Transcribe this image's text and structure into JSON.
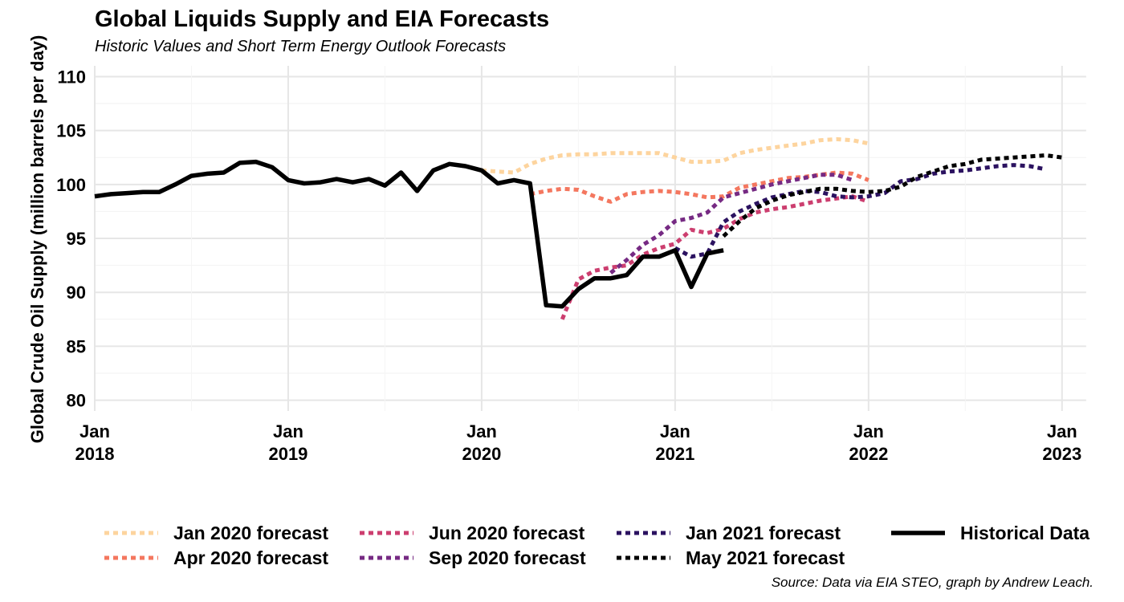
{
  "chart_data": {
    "type": "line",
    "title": "Global Liquids Supply and EIA Forecasts",
    "subtitle": "Historic Values and Short Term Energy Outlook Forecasts",
    "caption": "Source: Data via EIA STEO, graph by Andrew Leach.",
    "ylabel": "Global Crude Oil Supply (million barrels per day)",
    "xlabel": "",
    "ylim": [
      79,
      111
    ],
    "xlim": [
      "2018-01",
      "2023-02"
    ],
    "yticks": [
      80,
      85,
      90,
      95,
      100,
      105,
      110
    ],
    "xticks": [
      {
        "date": "2018-01",
        "label": [
          "Jan",
          "2018"
        ]
      },
      {
        "date": "2019-01",
        "label": [
          "Jan",
          "2019"
        ]
      },
      {
        "date": "2020-01",
        "label": [
          "Jan",
          "2020"
        ]
      },
      {
        "date": "2021-01",
        "label": [
          "Jan",
          "2021"
        ]
      },
      {
        "date": "2022-01",
        "label": [
          "Jan",
          "2022"
        ]
      },
      {
        "date": "2023-01",
        "label": [
          "Jan",
          "2023"
        ]
      }
    ],
    "grid": true,
    "legend_position": "bottom",
    "series": [
      {
        "name": "Jan 2020 forecast",
        "color": "#fdd49e",
        "dashed": true,
        "start": "2020-01",
        "values": [
          101.3,
          101.2,
          101.1,
          101.9,
          102.4,
          102.7,
          102.8,
          102.8,
          102.9,
          102.9,
          102.9,
          102.9,
          102.5,
          102.1,
          102.1,
          102.2,
          102.9,
          103.2,
          103.4,
          103.6,
          103.8,
          104.1,
          104.2,
          104.1,
          103.8
        ]
      },
      {
        "name": "Apr 2020 forecast",
        "color": "#f4775f",
        "dashed": true,
        "start": "2020-04",
        "values": [
          99.1,
          99.4,
          99.6,
          99.5,
          98.9,
          98.4,
          99.1,
          99.3,
          99.4,
          99.3,
          99.1,
          98.8,
          98.9,
          99.7,
          100.0,
          100.3,
          100.6,
          100.7,
          100.9,
          101.1,
          101.0,
          100.4
        ]
      },
      {
        "name": "Jun 2020 forecast",
        "color": "#cc3e6f",
        "dashed": true,
        "start": "2020-06",
        "values": [
          87.5,
          91.2,
          92.0,
          92.3,
          92.5,
          93.5,
          94.1,
          94.5,
          95.8,
          95.5,
          95.9,
          96.8,
          97.4,
          97.7,
          97.9,
          98.2,
          98.5,
          98.7,
          98.9,
          98.4
        ]
      },
      {
        "name": "Sep 2020 forecast",
        "color": "#762a83",
        "dashed": true,
        "start": "2020-09",
        "values": [
          91.8,
          93.0,
          94.4,
          95.3,
          96.6,
          96.9,
          97.4,
          98.8,
          99.2,
          99.6,
          100.0,
          100.3,
          100.6,
          100.9,
          100.9,
          100.4
        ]
      },
      {
        "name": "Jan 2021 forecast",
        "color": "#2b1260",
        "dashed": true,
        "start": "2021-01",
        "values": [
          94.1,
          93.3,
          93.6,
          96.5,
          97.5,
          98.2,
          98.8,
          99.1,
          99.4,
          99.3,
          98.9,
          98.8,
          98.9,
          99.2,
          100.3,
          100.5,
          101.0,
          101.2,
          101.3,
          101.5,
          101.7,
          101.8,
          101.7,
          101.4
        ]
      },
      {
        "name": "May 2021 forecast",
        "color": "#000000",
        "dashed": true,
        "start": "2021-04",
        "values": [
          95.2,
          96.6,
          97.8,
          98.5,
          99.0,
          99.3,
          99.6,
          99.6,
          99.4,
          99.3,
          99.4,
          99.8,
          100.7,
          101.2,
          101.7,
          101.9,
          102.3,
          102.4,
          102.5,
          102.6,
          102.7,
          102.5
        ]
      },
      {
        "name": "Historical Data",
        "color": "#000000",
        "dashed": false,
        "start": "2018-01",
        "values": [
          98.9,
          99.1,
          99.2,
          99.3,
          99.3,
          100.0,
          100.8,
          101.0,
          101.1,
          102.0,
          102.1,
          101.6,
          100.4,
          100.1,
          100.2,
          100.5,
          100.2,
          100.5,
          99.9,
          101.1,
          99.4,
          101.3,
          101.9,
          101.7,
          101.3,
          100.1,
          100.4,
          100.1,
          88.8,
          88.7,
          90.3,
          91.3,
          91.3,
          91.6,
          93.3,
          93.3,
          93.9,
          90.5,
          93.6,
          93.9
        ]
      }
    ],
    "legend_order": [
      "Jan 2020 forecast",
      "Apr 2020 forecast",
      "Jun 2020 forecast",
      "Sep 2020 forecast",
      "Jan 2021 forecast",
      "May 2021 forecast",
      "Historical Data"
    ]
  }
}
